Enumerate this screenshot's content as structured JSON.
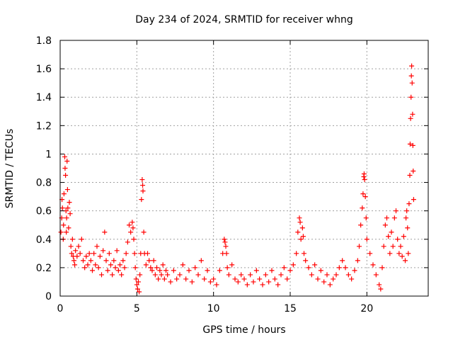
{
  "chart_data": {
    "type": "scatter",
    "title": "Day 234 of 2024, SRMTID for receiver whng",
    "xlabel": "GPS time / hours",
    "ylabel": "SRMTID / TECUs",
    "xlim": [
      0,
      24
    ],
    "ylim": [
      0,
      1.8
    ],
    "xticks": [
      0,
      5,
      10,
      15,
      20
    ],
    "xtick_labels": [
      "0",
      "5",
      "10",
      "15",
      "20"
    ],
    "yticks": [
      0,
      0.2,
      0.4,
      0.6,
      0.8,
      1,
      1.2,
      1.4,
      1.6,
      1.8
    ],
    "ytick_labels": [
      "0",
      "0.2",
      "0.4",
      "0.6",
      "0.8",
      "1",
      "1.2",
      "1.4",
      "1.6",
      "1.8"
    ],
    "grid": true,
    "marker": "+",
    "color": "#ff0000",
    "series": [
      {
        "name": "SRMTID",
        "points": [
          [
            0.05,
            0.45
          ],
          [
            0.1,
            0.55
          ],
          [
            0.12,
            0.68
          ],
          [
            0.15,
            0.62
          ],
          [
            0.2,
            0.4
          ],
          [
            0.22,
            0.5
          ],
          [
            0.25,
            0.72
          ],
          [
            0.3,
            0.98
          ],
          [
            0.32,
            0.9
          ],
          [
            0.35,
            0.85
          ],
          [
            0.38,
            0.6
          ],
          [
            0.4,
            0.45
          ],
          [
            0.42,
            0.55
          ],
          [
            0.45,
            0.95
          ],
          [
            0.48,
            0.75
          ],
          [
            0.5,
            0.62
          ],
          [
            0.55,
            0.48
          ],
          [
            0.6,
            0.66
          ],
          [
            0.65,
            0.58
          ],
          [
            0.7,
            0.35
          ],
          [
            0.75,
            0.3
          ],
          [
            0.8,
            0.4
          ],
          [
            0.85,
            0.28
          ],
          [
            0.9,
            0.25
          ],
          [
            0.95,
            0.22
          ],
          [
            1.0,
            0.32
          ],
          [
            1.1,
            0.28
          ],
          [
            1.2,
            0.35
          ],
          [
            1.3,
            0.3
          ],
          [
            1.4,
            0.4
          ],
          [
            1.5,
            0.25
          ],
          [
            1.6,
            0.2
          ],
          [
            1.7,
            0.28
          ],
          [
            1.8,
            0.22
          ],
          [
            1.9,
            0.3
          ],
          [
            2.0,
            0.25
          ],
          [
            2.1,
            0.18
          ],
          [
            2.2,
            0.3
          ],
          [
            2.3,
            0.22
          ],
          [
            2.4,
            0.35
          ],
          [
            2.5,
            0.2
          ],
          [
            2.6,
            0.28
          ],
          [
            2.7,
            0.15
          ],
          [
            2.8,
            0.32
          ],
          [
            2.9,
            0.45
          ],
          [
            3.0,
            0.25
          ],
          [
            3.1,
            0.18
          ],
          [
            3.2,
            0.3
          ],
          [
            3.3,
            0.22
          ],
          [
            3.4,
            0.15
          ],
          [
            3.5,
            0.25
          ],
          [
            3.6,
            0.2
          ],
          [
            3.7,
            0.32
          ],
          [
            3.8,
            0.18
          ],
          [
            3.9,
            0.22
          ],
          [
            4.0,
            0.15
          ],
          [
            4.1,
            0.25
          ],
          [
            4.2,
            0.2
          ],
          [
            4.3,
            0.3
          ],
          [
            4.4,
            0.38
          ],
          [
            4.5,
            0.5
          ],
          [
            4.6,
            0.45
          ],
          [
            4.7,
            0.52
          ],
          [
            4.75,
            0.48
          ],
          [
            4.8,
            0.4
          ],
          [
            4.85,
            0.3
          ],
          [
            4.9,
            0.2
          ],
          [
            4.95,
            0.12
          ],
          [
            5.0,
            0.08
          ],
          [
            5.05,
            0.05
          ],
          [
            5.1,
            0.1
          ],
          [
            5.15,
            0.03
          ],
          [
            5.2,
            0.15
          ],
          [
            5.25,
            0.3
          ],
          [
            5.3,
            0.68
          ],
          [
            5.35,
            0.82
          ],
          [
            5.38,
            0.78
          ],
          [
            5.4,
            0.74
          ],
          [
            5.45,
            0.45
          ],
          [
            5.5,
            0.3
          ],
          [
            5.6,
            0.22
          ],
          [
            5.7,
            0.3
          ],
          [
            5.8,
            0.25
          ],
          [
            5.9,
            0.2
          ],
          [
            6.0,
            0.18
          ],
          [
            6.1,
            0.25
          ],
          [
            6.2,
            0.15
          ],
          [
            6.3,
            0.2
          ],
          [
            6.4,
            0.12
          ],
          [
            6.5,
            0.18
          ],
          [
            6.6,
            0.15
          ],
          [
            6.7,
            0.22
          ],
          [
            6.8,
            0.12
          ],
          [
            6.9,
            0.18
          ],
          [
            7.0,
            0.15
          ],
          [
            7.2,
            0.1
          ],
          [
            7.4,
            0.18
          ],
          [
            7.6,
            0.12
          ],
          [
            7.8,
            0.15
          ],
          [
            8.0,
            0.22
          ],
          [
            8.2,
            0.12
          ],
          [
            8.4,
            0.18
          ],
          [
            8.6,
            0.1
          ],
          [
            8.8,
            0.2
          ],
          [
            9.0,
            0.15
          ],
          [
            9.2,
            0.25
          ],
          [
            9.4,
            0.12
          ],
          [
            9.6,
            0.18
          ],
          [
            9.8,
            0.1
          ],
          [
            10.0,
            0.12
          ],
          [
            10.2,
            0.08
          ],
          [
            10.4,
            0.18
          ],
          [
            10.6,
            0.3
          ],
          [
            10.7,
            0.4
          ],
          [
            10.75,
            0.38
          ],
          [
            10.8,
            0.35
          ],
          [
            10.85,
            0.3
          ],
          [
            10.9,
            0.2
          ],
          [
            11.0,
            0.15
          ],
          [
            11.2,
            0.22
          ],
          [
            11.4,
            0.12
          ],
          [
            11.6,
            0.1
          ],
          [
            11.8,
            0.15
          ],
          [
            12.0,
            0.12
          ],
          [
            12.2,
            0.08
          ],
          [
            12.4,
            0.15
          ],
          [
            12.6,
            0.1
          ],
          [
            12.8,
            0.18
          ],
          [
            13.0,
            0.12
          ],
          [
            13.2,
            0.08
          ],
          [
            13.4,
            0.15
          ],
          [
            13.6,
            0.1
          ],
          [
            13.8,
            0.18
          ],
          [
            14.0,
            0.12
          ],
          [
            14.2,
            0.08
          ],
          [
            14.4,
            0.15
          ],
          [
            14.6,
            0.2
          ],
          [
            14.8,
            0.12
          ],
          [
            15.0,
            0.18
          ],
          [
            15.2,
            0.22
          ],
          [
            15.4,
            0.3
          ],
          [
            15.5,
            0.45
          ],
          [
            15.6,
            0.55
          ],
          [
            15.65,
            0.52
          ],
          [
            15.7,
            0.4
          ],
          [
            15.8,
            0.48
          ],
          [
            15.85,
            0.42
          ],
          [
            15.9,
            0.3
          ],
          [
            16.0,
            0.25
          ],
          [
            16.2,
            0.2
          ],
          [
            16.4,
            0.15
          ],
          [
            16.6,
            0.22
          ],
          [
            16.8,
            0.12
          ],
          [
            17.0,
            0.18
          ],
          [
            17.2,
            0.1
          ],
          [
            17.4,
            0.15
          ],
          [
            17.6,
            0.08
          ],
          [
            17.8,
            0.12
          ],
          [
            18.0,
            0.15
          ],
          [
            18.2,
            0.2
          ],
          [
            18.4,
            0.25
          ],
          [
            18.6,
            0.2
          ],
          [
            18.8,
            0.15
          ],
          [
            19.0,
            0.12
          ],
          [
            19.2,
            0.18
          ],
          [
            19.4,
            0.25
          ],
          [
            19.5,
            0.35
          ],
          [
            19.6,
            0.5
          ],
          [
            19.7,
            0.62
          ],
          [
            19.75,
            0.72
          ],
          [
            19.8,
            0.84
          ],
          [
            19.82,
            0.86
          ],
          [
            19.85,
            0.82
          ],
          [
            19.9,
            0.7
          ],
          [
            19.95,
            0.55
          ],
          [
            20.0,
            0.4
          ],
          [
            20.2,
            0.3
          ],
          [
            20.4,
            0.22
          ],
          [
            20.6,
            0.15
          ],
          [
            20.8,
            0.08
          ],
          [
            20.9,
            0.05
          ],
          [
            21.0,
            0.2
          ],
          [
            21.1,
            0.35
          ],
          [
            21.2,
            0.5
          ],
          [
            21.3,
            0.55
          ],
          [
            21.4,
            0.42
          ],
          [
            21.5,
            0.3
          ],
          [
            21.6,
            0.45
          ],
          [
            21.7,
            0.35
          ],
          [
            21.8,
            0.55
          ],
          [
            21.9,
            0.6
          ],
          [
            22.0,
            0.4
          ],
          [
            22.1,
            0.3
          ],
          [
            22.2,
            0.35
          ],
          [
            22.3,
            0.28
          ],
          [
            22.4,
            0.42
          ],
          [
            22.5,
            0.25
          ],
          [
            22.55,
            0.55
          ],
          [
            22.6,
            0.6
          ],
          [
            22.65,
            0.48
          ],
          [
            22.7,
            0.3
          ],
          [
            22.75,
            0.65
          ],
          [
            22.8,
            0.85
          ],
          [
            22.82,
            1.07
          ],
          [
            22.85,
            1.25
          ],
          [
            22.88,
            1.4
          ],
          [
            22.9,
            1.55
          ],
          [
            22.92,
            1.62
          ],
          [
            22.95,
            1.5
          ],
          [
            22.98,
            1.28
          ],
          [
            23.0,
            1.06
          ],
          [
            23.02,
            0.88
          ],
          [
            23.05,
            0.68
          ]
        ]
      }
    ]
  }
}
